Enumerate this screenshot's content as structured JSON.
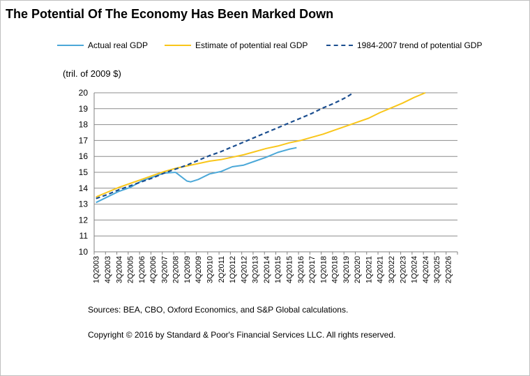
{
  "title": "The Potential Of The Economy Has Been Marked Down",
  "unit_label": "(tril. of 2009 $)",
  "sources": "Sources: BEA, CBO, Oxford Economics, and S&P Global calculations.",
  "copyright": "Copyright © 2016 by Standard & Poor's Financial Services LLC. All rights reserved.",
  "colors": {
    "actual": "#4ba8d8",
    "potential": "#f9c61a",
    "trend": "#1b4e8f",
    "grid": "#8c8c8c",
    "axis": "#808080"
  },
  "chart_data": {
    "type": "line",
    "title": "The Potential Of The Economy Has Been Marked Down",
    "ylabel": "(tril. of 2009 $)",
    "ylim": [
      10,
      20
    ],
    "yticks": [
      10,
      11,
      12,
      13,
      14,
      15,
      16,
      17,
      18,
      19,
      20
    ],
    "grid": true,
    "legend_position": "top",
    "x_quarter_range": [
      "1Q2003",
      "4Q2026"
    ],
    "x_tick_labels": [
      "1Q2003",
      "4Q2003",
      "3Q2004",
      "2Q2005",
      "1Q2006",
      "4Q2006",
      "3Q2007",
      "2Q2008",
      "1Q2009",
      "4Q2009",
      "3Q2010",
      "2Q2011",
      "1Q2012",
      "4Q2012",
      "3Q2013",
      "2Q2014",
      "1Q2015",
      "4Q2015",
      "3Q2016",
      "2Q2017",
      "1Q2018",
      "4Q2018",
      "3Q2019",
      "2Q2020",
      "1Q2021",
      "4Q2021",
      "3Q2022",
      "2Q2023",
      "1Q2024",
      "4Q2024",
      "3Q2025",
      "2Q2026"
    ],
    "series": [
      {
        "name": "Actual real GDP",
        "style": "solid",
        "color": "#4ba8d8",
        "points": [
          [
            "1Q2003",
            13.1
          ],
          [
            "4Q2003",
            13.45
          ],
          [
            "3Q2004",
            13.8
          ],
          [
            "2Q2005",
            14.05
          ],
          [
            "1Q2006",
            14.45
          ],
          [
            "4Q2006",
            14.7
          ],
          [
            "3Q2007",
            14.95
          ],
          [
            "2Q2008",
            15.0
          ],
          [
            "1Q2009",
            14.45
          ],
          [
            "2Q2009",
            14.4
          ],
          [
            "4Q2009",
            14.55
          ],
          [
            "3Q2010",
            14.9
          ],
          [
            "2Q2011",
            15.05
          ],
          [
            "1Q2012",
            15.35
          ],
          [
            "4Q2012",
            15.45
          ],
          [
            "3Q2013",
            15.7
          ],
          [
            "2Q2014",
            15.95
          ],
          [
            "1Q2015",
            16.25
          ],
          [
            "4Q2015",
            16.45
          ],
          [
            "2Q2016",
            16.55
          ]
        ]
      },
      {
        "name": "Estimate of potential real GDP",
        "style": "solid",
        "color": "#f9c61a",
        "points": [
          [
            "1Q2003",
            13.45
          ],
          [
            "4Q2003",
            13.75
          ],
          [
            "3Q2004",
            14.05
          ],
          [
            "2Q2005",
            14.3
          ],
          [
            "1Q2006",
            14.55
          ],
          [
            "4Q2006",
            14.8
          ],
          [
            "3Q2007",
            15.05
          ],
          [
            "2Q2008",
            15.25
          ],
          [
            "1Q2009",
            15.4
          ],
          [
            "4Q2009",
            15.55
          ],
          [
            "3Q2010",
            15.7
          ],
          [
            "2Q2011",
            15.8
          ],
          [
            "1Q2012",
            15.95
          ],
          [
            "4Q2012",
            16.1
          ],
          [
            "3Q2013",
            16.3
          ],
          [
            "2Q2014",
            16.5
          ],
          [
            "1Q2015",
            16.65
          ],
          [
            "4Q2015",
            16.85
          ],
          [
            "3Q2016",
            17.0
          ],
          [
            "2Q2017",
            17.2
          ],
          [
            "1Q2018",
            17.4
          ],
          [
            "4Q2018",
            17.65
          ],
          [
            "3Q2019",
            17.9
          ],
          [
            "2Q2020",
            18.15
          ],
          [
            "1Q2021",
            18.4
          ],
          [
            "4Q2021",
            18.75
          ],
          [
            "3Q2022",
            19.05
          ],
          [
            "2Q2023",
            19.35
          ],
          [
            "1Q2024",
            19.7
          ],
          [
            "4Q2024",
            20.0
          ]
        ]
      },
      {
        "name": "1984-2007 trend of potential GDP",
        "style": "dashed",
        "color": "#1b4e8f",
        "points": [
          [
            "1Q2003",
            13.35
          ],
          [
            "4Q2003",
            13.6
          ],
          [
            "3Q2004",
            13.9
          ],
          [
            "2Q2005",
            14.15
          ],
          [
            "1Q2006",
            14.4
          ],
          [
            "4Q2006",
            14.65
          ],
          [
            "3Q2007",
            14.95
          ],
          [
            "2Q2008",
            15.2
          ],
          [
            "1Q2009",
            15.45
          ],
          [
            "4Q2009",
            15.75
          ],
          [
            "3Q2010",
            16.05
          ],
          [
            "2Q2011",
            16.3
          ],
          [
            "1Q2012",
            16.6
          ],
          [
            "4Q2012",
            16.9
          ],
          [
            "3Q2013",
            17.2
          ],
          [
            "2Q2014",
            17.5
          ],
          [
            "1Q2015",
            17.8
          ],
          [
            "4Q2015",
            18.1
          ],
          [
            "3Q2016",
            18.4
          ],
          [
            "2Q2017",
            18.7
          ],
          [
            "1Q2018",
            19.05
          ],
          [
            "4Q2018",
            19.35
          ],
          [
            "3Q2019",
            19.7
          ],
          [
            "1Q2020",
            20.0
          ]
        ]
      }
    ]
  },
  "legend": [
    {
      "label": "Actual real GDP"
    },
    {
      "label": "Estimate of potential real GDP"
    },
    {
      "label": "1984-2007 trend of potential GDP"
    }
  ]
}
